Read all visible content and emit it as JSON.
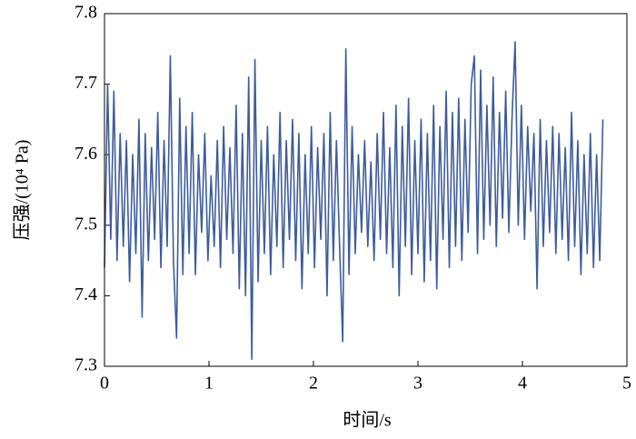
{
  "chart_data": {
    "type": "line",
    "xlabel": "时间/s",
    "ylabel": "压强/(10⁴ Pa)",
    "xlim": [
      0,
      5
    ],
    "xticks": [
      0,
      1,
      2,
      3,
      4,
      5
    ],
    "ylim": [
      7.3,
      7.8
    ],
    "yticks": [
      7.3,
      7.4,
      7.5,
      7.6,
      7.7,
      7.8
    ],
    "grid": false,
    "series": [
      {
        "color": "#3e5c9a",
        "x": [
          0,
          0.03,
          0.06,
          0.09,
          0.12,
          0.15,
          0.18,
          0.21,
          0.24,
          0.27,
          0.3,
          0.33,
          0.36,
          0.39,
          0.42,
          0.45,
          0.48,
          0.51,
          0.54,
          0.57,
          0.6,
          0.63,
          0.66,
          0.69,
          0.72,
          0.75,
          0.78,
          0.81,
          0.84,
          0.87,
          0.9,
          0.93,
          0.96,
          0.99,
          1.02,
          1.05,
          1.08,
          1.11,
          1.14,
          1.17,
          1.2,
          1.23,
          1.26,
          1.29,
          1.32,
          1.35,
          1.38,
          1.41,
          1.44,
          1.47,
          1.5,
          1.53,
          1.56,
          1.59,
          1.62,
          1.65,
          1.68,
          1.71,
          1.74,
          1.77,
          1.8,
          1.83,
          1.86,
          1.89,
          1.92,
          1.95,
          1.98,
          2.01,
          2.04,
          2.07,
          2.1,
          2.13,
          2.16,
          2.19,
          2.22,
          2.25,
          2.28,
          2.31,
          2.34,
          2.37,
          2.4,
          2.43,
          2.46,
          2.49,
          2.52,
          2.55,
          2.58,
          2.61,
          2.64,
          2.67,
          2.7,
          2.73,
          2.76,
          2.79,
          2.82,
          2.85,
          2.88,
          2.91,
          2.94,
          2.97,
          3,
          3.03,
          3.06,
          3.09,
          3.12,
          3.15,
          3.18,
          3.21,
          3.24,
          3.27,
          3.3,
          3.33,
          3.36,
          3.39,
          3.42,
          3.45,
          3.48,
          3.51,
          3.54,
          3.57,
          3.6,
          3.63,
          3.66,
          3.69,
          3.72,
          3.75,
          3.78,
          3.81,
          3.84,
          3.87,
          3.9,
          3.93,
          3.96,
          3.99,
          4.02,
          4.05,
          4.08,
          4.11,
          4.14,
          4.17,
          4.2,
          4.23,
          4.26,
          4.29,
          4.32,
          4.35,
          4.38,
          4.41,
          4.44,
          4.47,
          4.5,
          4.53,
          4.56,
          4.59,
          4.62,
          4.65,
          4.68,
          4.71,
          4.74,
          4.77
        ],
        "values": [
          7.44,
          7.7,
          7.48,
          7.69,
          7.45,
          7.63,
          7.47,
          7.62,
          7.42,
          7.6,
          7.46,
          7.65,
          7.37,
          7.63,
          7.45,
          7.61,
          7.48,
          7.66,
          7.44,
          7.62,
          7.47,
          7.74,
          7.45,
          7.34,
          7.68,
          7.43,
          7.64,
          7.46,
          7.66,
          7.43,
          7.6,
          7.49,
          7.63,
          7.45,
          7.57,
          7.47,
          7.62,
          7.44,
          7.64,
          7.48,
          7.61,
          7.46,
          7.67,
          7.41,
          7.63,
          7.4,
          7.71,
          7.31,
          7.735,
          7.42,
          7.62,
          7.46,
          7.64,
          7.43,
          7.6,
          7.47,
          7.66,
          7.44,
          7.62,
          7.48,
          7.65,
          7.45,
          7.63,
          7.41,
          7.6,
          7.46,
          7.64,
          7.44,
          7.61,
          7.48,
          7.63,
          7.4,
          7.66,
          7.45,
          7.62,
          7.47,
          7.335,
          7.75,
          7.43,
          7.64,
          7.46,
          7.6,
          7.49,
          7.62,
          7.47,
          7.59,
          7.45,
          7.63,
          7.48,
          7.66,
          7.46,
          7.61,
          7.44,
          7.67,
          7.4,
          7.64,
          7.47,
          7.68,
          7.43,
          7.62,
          7.46,
          7.65,
          7.42,
          7.63,
          7.45,
          7.67,
          7.41,
          7.64,
          7.48,
          7.69,
          7.44,
          7.66,
          7.47,
          7.68,
          7.45,
          7.65,
          7.49,
          7.7,
          7.74,
          7.46,
          7.72,
          7.48,
          7.67,
          7.5,
          7.71,
          7.47,
          7.66,
          7.51,
          7.69,
          7.49,
          7.65,
          7.76,
          7.5,
          7.67,
          7.48,
          7.64,
          7.52,
          7.63,
          7.41,
          7.65,
          7.47,
          7.62,
          7.49,
          7.64,
          7.46,
          7.63,
          7.48,
          7.61,
          7.45,
          7.66,
          7.47,
          7.62,
          7.43,
          7.6,
          7.46,
          7.63,
          7.44,
          7.6,
          7.45,
          7.65
        ]
      }
    ]
  }
}
